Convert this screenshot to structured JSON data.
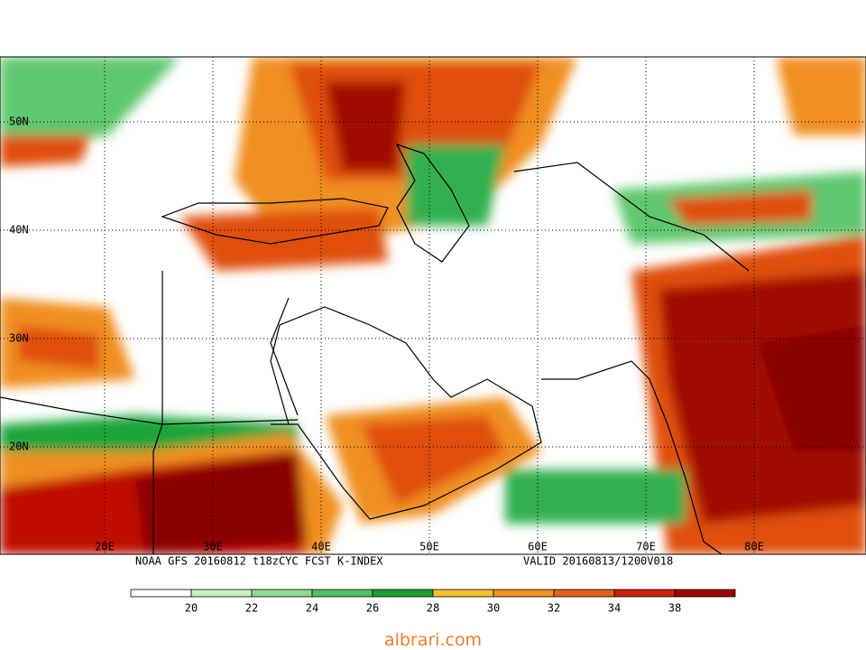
{
  "map": {
    "lat_labels": [
      "50N",
      "40N",
      "30N",
      "20N"
    ],
    "lon_labels": [
      "20E",
      "30E",
      "40E",
      "50E",
      "60E",
      "70E",
      "80E"
    ],
    "caption_left": "NOAA GFS 20160812 t18zCYC FCST K-INDEX",
    "caption_right": "VALID 20160813/1200V018"
  },
  "legend": {
    "colors": [
      "#ffffff",
      "#c8f0c0",
      "#90dc90",
      "#50c060",
      "#18a030",
      "#f8c030",
      "#f09020",
      "#e86018",
      "#d02008",
      "#a00000"
    ],
    "labels": [
      20,
      22,
      24,
      26,
      28,
      30,
      32,
      34,
      38
    ]
  },
  "watermark": "albrari.com"
}
